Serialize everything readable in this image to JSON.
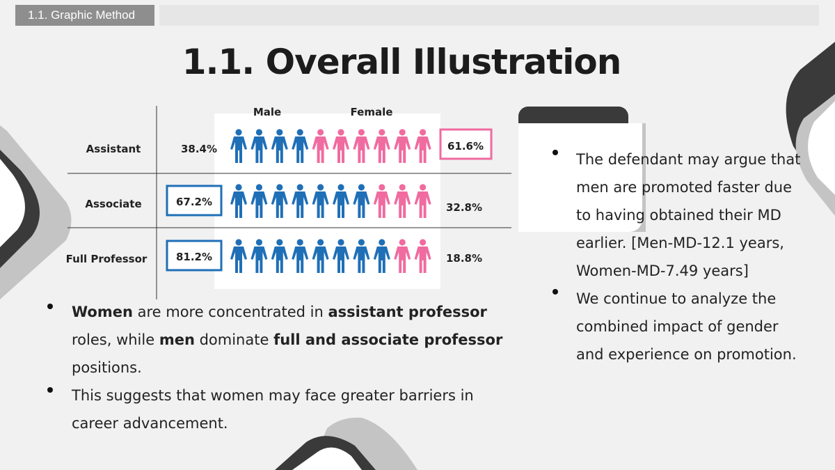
{
  "header": {
    "section_tag": "1.1. Graphic Method",
    "title": "1.1. Overall Illustration"
  },
  "theme": {
    "male_color": "#1f6fb7",
    "female_color": "#f06b9f",
    "dark": "#3a3a3a",
    "light": "#c4c4c4"
  },
  "chart_data": {
    "type": "pictogram",
    "icons_per_row": 10,
    "series_labels": [
      "Male",
      "Female"
    ],
    "rows": [
      {
        "label": "Assistant",
        "male_icons": 4,
        "female_icons": 6,
        "male": "38.4%",
        "female": "61.6%",
        "highlight": "female"
      },
      {
        "label": "Associate",
        "male_icons": 7,
        "female_icons": 3,
        "male": "67.2%",
        "female": "32.8%",
        "highlight": "male"
      },
      {
        "label": "Full Professor",
        "male_icons": 8,
        "female_icons": 2,
        "male": "81.2%",
        "female": "18.8%",
        "highlight": "male"
      }
    ]
  },
  "left_bullets": [
    [
      {
        "t": "Women",
        "b": true
      },
      {
        "t": " are more concentrated in "
      },
      {
        "t": "assistant professor",
        "b": true
      },
      {
        "t": " roles, while "
      },
      {
        "t": "men",
        "b": true
      },
      {
        "t": " dominate "
      },
      {
        "t": "full and associate professor",
        "b": true
      },
      {
        "t": " positions."
      }
    ],
    [
      {
        "t": "This suggests that women may face greater barriers in career advancement."
      }
    ]
  ],
  "right_bullets": [
    "The defendant may argue that men are promoted faster due to having obtained their MD earlier. [Men-MD-12.1 years, Women-MD-7.49 years]",
    "We continue to analyze the combined impact of gender and experience on promotion."
  ]
}
